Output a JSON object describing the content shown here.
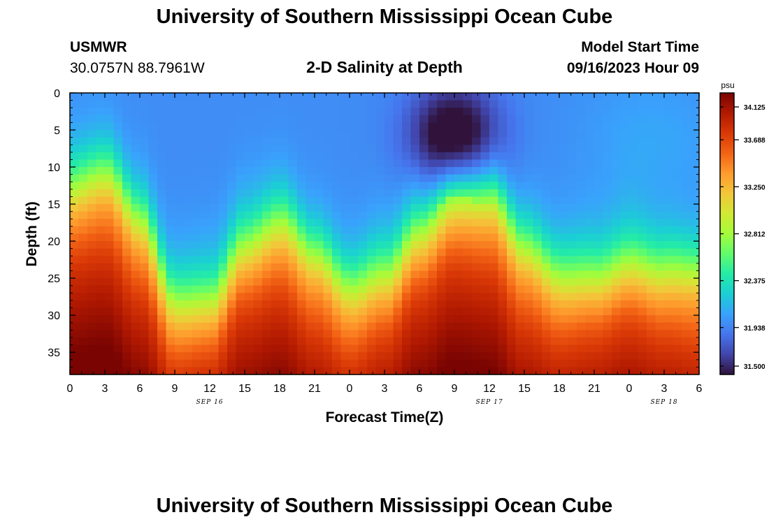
{
  "header": {
    "title": "University of Southern Mississippi Ocean Cube",
    "station": "USMWR",
    "coords": "30.0757N  88.7961W",
    "subtitle": "2-D Salinity at Depth",
    "model_label": "Model Start Time",
    "model_time": "09/16/2023 Hour 09"
  },
  "footer": {
    "title": "University of Southern Mississippi Ocean Cube"
  },
  "chart_data": {
    "type": "heatmap",
    "title": "2-D Salinity at Depth",
    "xlabel": "Forecast Time(Z)",
    "ylabel": "Depth (ft)",
    "x_range_hours": [
      0,
      54
    ],
    "x_tick_labels": [
      "0",
      "3",
      "6",
      "9",
      "12",
      "15",
      "18",
      "21",
      "0",
      "3",
      "6",
      "9",
      "12",
      "15",
      "18",
      "21",
      "0",
      "3",
      "6"
    ],
    "date_labels": [
      {
        "text": "SEP 16",
        "hour": 12
      },
      {
        "text": "SEP 17",
        "hour": 36
      },
      {
        "text": "SEP 18",
        "hour": 51
      }
    ],
    "y_range_ft": [
      0,
      38
    ],
    "y_ticks": [
      0,
      5,
      10,
      15,
      20,
      25,
      30,
      35
    ],
    "colorbar": {
      "unit": "psu",
      "min": 31.5,
      "max": 34.125,
      "tick_labels": [
        "34.125",
        "33.688",
        "33.250",
        "32.812",
        "32.375",
        "31.938",
        "31.500"
      ],
      "tick_values": [
        34.125,
        33.688,
        33.25,
        32.812,
        32.375,
        31.938,
        31.5
      ],
      "stops": [
        "#30123b",
        "#4145ab",
        "#4675ed",
        "#39a2fc",
        "#1bcfd4",
        "#24eca6",
        "#61fc6c",
        "#a4fc3b",
        "#d1e834",
        "#f3c63a",
        "#fe9b2d",
        "#f36315",
        "#d93806",
        "#b11901",
        "#7a0402"
      ]
    },
    "halocline_depth_ft": {
      "hours": [
        0,
        3,
        6,
        9,
        12,
        15,
        18,
        21,
        24,
        27,
        30,
        33,
        36,
        39,
        42,
        45,
        48,
        51,
        54
      ],
      "values": [
        13,
        12,
        18,
        28,
        27,
        20,
        18,
        23,
        27,
        24,
        18,
        14,
        15,
        22,
        25,
        24,
        22,
        24,
        25
      ]
    },
    "low_salinity_core": {
      "center_hour": 33,
      "center_depth_ft": 6,
      "salinity_min": 31.5
    },
    "bottom_salinity_max": 34.125
  }
}
